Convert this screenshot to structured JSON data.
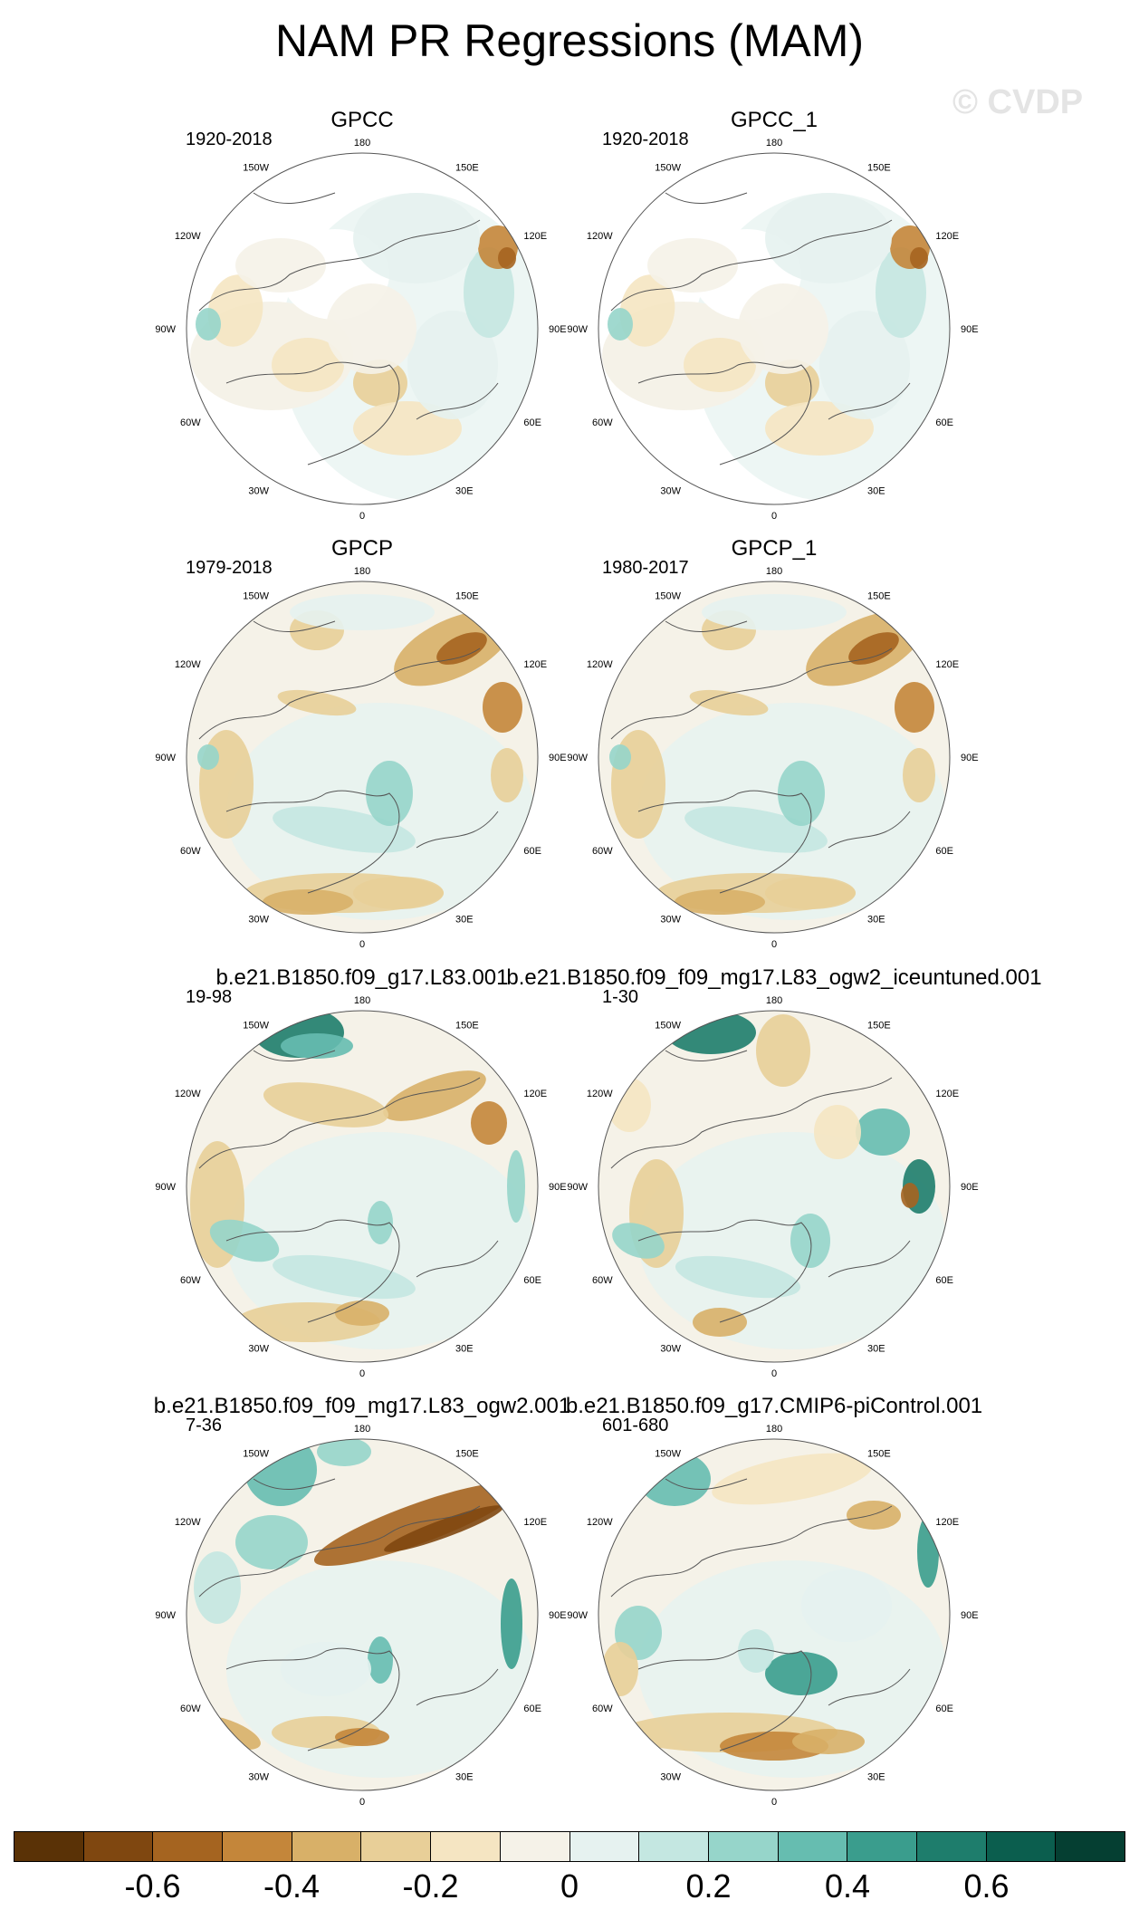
{
  "figure": {
    "title": "NAM PR Regressions (MAM)",
    "watermark": "© CVDP"
  },
  "lon_labels": [
    "180",
    "150E",
    "120E",
    "90E",
    "60E",
    "30E",
    "0",
    "30W",
    "60W",
    "90W",
    "120W",
    "150W"
  ],
  "panels": [
    {
      "title": "GPCC",
      "period": "1920-2018",
      "pattern": "land"
    },
    {
      "title": "GPCC_1",
      "period": "1920-2018",
      "pattern": "land"
    },
    {
      "title": "GPCP",
      "period": "1979-2018",
      "pattern": "obs"
    },
    {
      "title": "GPCP_1",
      "period": "1980-2017",
      "pattern": "obs"
    },
    {
      "title": "b.e21.B1850.f09_g17.L83.001",
      "period": "19-98",
      "pattern": "model_a"
    },
    {
      "title": "b.e21.B1850.f09_f09_mg17.L83_ogw2_iceuntuned.001",
      "period": "1-30",
      "pattern": "model_b"
    },
    {
      "title": "b.e21.B1850.f09_f09_mg17.L83_ogw2.001",
      "period": "7-36",
      "pattern": "model_c"
    },
    {
      "title": "b.e21.B1850.f09_g17.CMIP6-piControl.001",
      "period": "601-680",
      "pattern": "model_d"
    }
  ],
  "colorbar": {
    "colors": [
      "#5a3206",
      "#7f4710",
      "#a56420",
      "#c4863a",
      "#d8b068",
      "#e8cf98",
      "#f5e5c2",
      "#f5f2e8",
      "#e6f2f0",
      "#c4e7e1",
      "#96d5ca",
      "#66bdb0",
      "#3a9d8d",
      "#1e7d6c",
      "#0b5e4e",
      "#053f32"
    ],
    "labels": [
      "-0.6",
      "-0.4",
      "-0.2",
      "0",
      "0.2",
      "0.4",
      "0.6"
    ],
    "label_values": [
      -0.6,
      -0.4,
      -0.2,
      0,
      0.2,
      0.4,
      0.6
    ],
    "range": [
      -0.8,
      0.8
    ]
  }
}
